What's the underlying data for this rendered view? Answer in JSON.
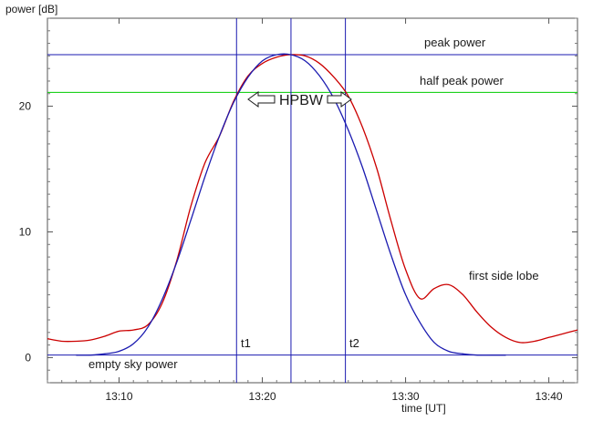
{
  "chart_data": {
    "type": "line",
    "xlabel": "time [UT]",
    "ylabel": "power [dB]",
    "x_unit": "UT",
    "xlim": [
      "13:05",
      "13:42"
    ],
    "ylim": [
      -2,
      27
    ],
    "x_ticks": [
      "13:10",
      "13:20",
      "13:30",
      "13:40"
    ],
    "y_ticks": [
      0,
      10,
      20
    ],
    "grid": false,
    "series": [
      {
        "color": "#cc0000",
        "x": [
          "13:05",
          "13:06",
          "13:07",
          "13:08",
          "13:09",
          "13:10",
          "13:11",
          "13:12",
          "13:13",
          "13:14",
          "13:15",
          "13:16",
          "13:17",
          "13:18",
          "13:19",
          "13:20",
          "13:21",
          "13:22",
          "13:23",
          "13:24",
          "13:25",
          "13:26",
          "13:27",
          "13:28",
          "13:29",
          "13:30",
          "13:31",
          "13:32",
          "13:33",
          "13:34",
          "13:35",
          "13:36",
          "13:37",
          "13:38",
          "13:39",
          "13:40",
          "13:41",
          "13:42"
        ],
        "y": [
          1.5,
          1.3,
          1.3,
          1.4,
          1.7,
          2.1,
          2.2,
          2.6,
          4.3,
          7.6,
          12.0,
          15.5,
          17.6,
          20.4,
          22.4,
          23.4,
          23.9,
          24.1,
          24.0,
          23.4,
          22.3,
          20.8,
          18.3,
          15.0,
          10.8,
          7.0,
          4.7,
          5.5,
          5.8,
          5.0,
          3.6,
          2.4,
          1.6,
          1.2,
          1.3,
          1.6,
          1.9,
          2.2
        ]
      },
      {
        "color": "#1a1ab0",
        "x": [
          "13:05",
          "13:06",
          "13:07",
          "13:08",
          "13:09",
          "13:10",
          "13:11",
          "13:12",
          "13:13",
          "13:14",
          "13:15",
          "13:16",
          "13:17",
          "13:18",
          "13:19",
          "13:20",
          "13:21",
          "13:22",
          "13:23",
          "13:24",
          "13:25",
          "13:26",
          "13:27",
          "13:28",
          "13:29",
          "13:30",
          "13:31",
          "13:32",
          "13:33",
          "13:34",
          "13:35",
          "13:36",
          "13:37",
          "13:38",
          "13:39",
          "13:40",
          "13:41",
          "13:42"
        ],
        "y": [
          null,
          null,
          0.2,
          0.2,
          0.3,
          0.5,
          1.1,
          2.4,
          4.6,
          7.5,
          10.9,
          14.4,
          17.6,
          20.3,
          22.3,
          23.6,
          24.1,
          24.1,
          23.6,
          22.4,
          20.6,
          18.1,
          15.1,
          11.6,
          8.1,
          5.0,
          2.8,
          1.2,
          0.5,
          0.3,
          0.2,
          0.2,
          0.2,
          null,
          null,
          null,
          null,
          null
        ]
      }
    ],
    "hlines": [
      {
        "y": 24.1,
        "color": "#1a1ab0",
        "label": "peak power"
      },
      {
        "y": 21.1,
        "color": "#00cc00",
        "label": "half peak power"
      },
      {
        "y": 0.2,
        "color": "#1a1ab0",
        "label": "empty sky power"
      }
    ],
    "vlines": [
      {
        "x": "13:18.2",
        "color": "#1a1ab0",
        "label": "t1"
      },
      {
        "x": "13:22.0",
        "color": "#1a1ab0",
        "label": ""
      },
      {
        "x": "13:25.8",
        "color": "#1a1ab0",
        "label": "t2"
      }
    ],
    "annotations": {
      "hpbw": "HPBW",
      "side_lobe": "first side lobe"
    }
  }
}
